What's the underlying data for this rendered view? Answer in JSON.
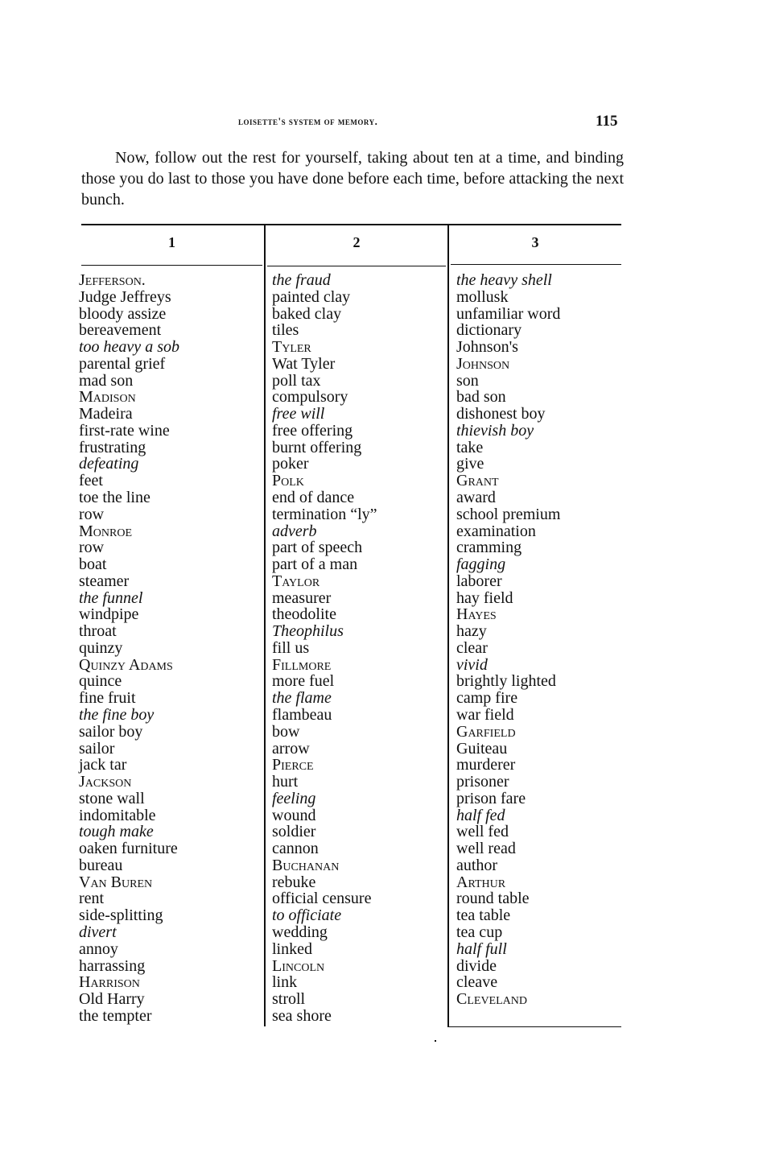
{
  "running_head": "Loisette's System of Memory.",
  "page_number": "115",
  "intro": "Now, follow out the rest for yourself, taking about ten at a time, and binding those you do last to those you have done before each time, before attacking the next bunch.",
  "columns": [
    {
      "header": "1",
      "items": [
        {
          "text": "Jefferson.",
          "style": "sc"
        },
        {
          "text": "Judge Jeffreys"
        },
        {
          "text": "bloody assize"
        },
        {
          "text": "bereavement"
        },
        {
          "text": "too heavy a sob",
          "style": "italic"
        },
        {
          "text": "parental grief"
        },
        {
          "text": "mad son"
        },
        {
          "text": "Madison",
          "style": "sc"
        },
        {
          "text": "Madeira"
        },
        {
          "text": "first-rate wine"
        },
        {
          "text": "frustrating"
        },
        {
          "text": "defeating",
          "style": "italic"
        },
        {
          "text": "feet"
        },
        {
          "text": "toe the line"
        },
        {
          "text": "row"
        },
        {
          "text": "Monroe",
          "style": "sc"
        },
        {
          "text": "row"
        },
        {
          "text": "boat"
        },
        {
          "text": "steamer"
        },
        {
          "text": "the funnel",
          "style": "italic"
        },
        {
          "text": "windpipe"
        },
        {
          "text": "throat"
        },
        {
          "text": "quinzy"
        },
        {
          "text": "Quinzy Adams",
          "style": "sc"
        },
        {
          "text": "quince"
        },
        {
          "text": "fine fruit"
        },
        {
          "text": "the fine boy",
          "style": "italic"
        },
        {
          "text": "sailor boy"
        },
        {
          "text": "sailor"
        },
        {
          "text": "jack tar"
        },
        {
          "text": "Jackson",
          "style": "sc"
        },
        {
          "text": "stone wall"
        },
        {
          "text": "indomitable"
        },
        {
          "text": "tough make",
          "style": "italic"
        },
        {
          "text": "oaken furniture"
        },
        {
          "text": "bureau"
        },
        {
          "text": "Van Buren",
          "style": "sc"
        },
        {
          "text": "rent"
        },
        {
          "text": "side-splitting"
        },
        {
          "text": "divert",
          "style": "italic"
        },
        {
          "text": "annoy"
        },
        {
          "text": "harrassing"
        },
        {
          "text": "Harrison",
          "style": "sc"
        },
        {
          "text": "Old Harry"
        },
        {
          "text": "the tempter"
        }
      ]
    },
    {
      "header": "2",
      "items": [
        {
          "text": "the fraud",
          "style": "italic"
        },
        {
          "text": "painted clay"
        },
        {
          "text": "baked clay"
        },
        {
          "text": "tiles"
        },
        {
          "text": "Tyler",
          "style": "sc"
        },
        {
          "text": "Wat Tyler"
        },
        {
          "text": "poll tax"
        },
        {
          "text": "compulsory"
        },
        {
          "text": "free will",
          "style": "italic"
        },
        {
          "text": "free offering"
        },
        {
          "text": "burnt offering"
        },
        {
          "text": "poker"
        },
        {
          "text": "Polk",
          "style": "sc"
        },
        {
          "text": "end of dance"
        },
        {
          "text": "termination “ly”"
        },
        {
          "text": "adverb",
          "style": "italic"
        },
        {
          "text": "part of speech"
        },
        {
          "text": "part of a man"
        },
        {
          "text": "Taylor",
          "style": "sc"
        },
        {
          "text": "measurer"
        },
        {
          "text": "theodolite"
        },
        {
          "text": "Theophilus",
          "style": "italic"
        },
        {
          "text": "fill us"
        },
        {
          "text": "Fillmore",
          "style": "sc"
        },
        {
          "text": "more fuel"
        },
        {
          "text": "the flame",
          "style": "italic"
        },
        {
          "text": "flambeau"
        },
        {
          "text": "bow"
        },
        {
          "text": "arrow"
        },
        {
          "text": "Pierce",
          "style": "sc"
        },
        {
          "text": "hurt"
        },
        {
          "text": "feeling",
          "style": "italic"
        },
        {
          "text": "wound"
        },
        {
          "text": "soldier"
        },
        {
          "text": "cannon"
        },
        {
          "text": "Buchanan",
          "style": "sc"
        },
        {
          "text": "rebuke"
        },
        {
          "text": "official censure"
        },
        {
          "text": "to officiate",
          "style": "italic"
        },
        {
          "text": "wedding"
        },
        {
          "text": "linked"
        },
        {
          "text": "Lincoln",
          "style": "sc"
        },
        {
          "text": "link"
        },
        {
          "text": "stroll"
        },
        {
          "text": "sea shore"
        }
      ]
    },
    {
      "header": "3",
      "items": [
        {
          "text": "the heavy shell",
          "style": "italic"
        },
        {
          "text": "mollusk"
        },
        {
          "text": "unfamiliar word"
        },
        {
          "text": "dictionary"
        },
        {
          "text": "Johnson's"
        },
        {
          "text": "Johnson",
          "style": "sc"
        },
        {
          "text": "son"
        },
        {
          "text": "bad son"
        },
        {
          "text": "dishonest boy"
        },
        {
          "text": "thievish boy",
          "style": "italic"
        },
        {
          "text": "take"
        },
        {
          "text": "give"
        },
        {
          "text": "Grant",
          "style": "sc"
        },
        {
          "text": "award"
        },
        {
          "text": "school premium"
        },
        {
          "text": "examination"
        },
        {
          "text": "cramming"
        },
        {
          "text": "fagging",
          "style": "italic"
        },
        {
          "text": "laborer"
        },
        {
          "text": "hay field"
        },
        {
          "text": "Hayes",
          "style": "sc"
        },
        {
          "text": "hazy"
        },
        {
          "text": "clear"
        },
        {
          "text": "vivid",
          "style": "italic"
        },
        {
          "text": "brightly lighted"
        },
        {
          "text": "camp fire"
        },
        {
          "text": "war field"
        },
        {
          "text": "Garfield",
          "style": "sc"
        },
        {
          "text": "Guiteau"
        },
        {
          "text": "murderer"
        },
        {
          "text": "prisoner"
        },
        {
          "text": "prison fare"
        },
        {
          "text": "half fed",
          "style": "italic"
        },
        {
          "text": "well fed"
        },
        {
          "text": "well read"
        },
        {
          "text": "author"
        },
        {
          "text": "Arthur",
          "style": "sc"
        },
        {
          "text": "round table"
        },
        {
          "text": "tea table"
        },
        {
          "text": "tea cup"
        },
        {
          "text": "half full",
          "style": "italic"
        },
        {
          "text": "divide"
        },
        {
          "text": "cleave"
        },
        {
          "text": "Cleveland",
          "style": "sc"
        }
      ]
    }
  ]
}
